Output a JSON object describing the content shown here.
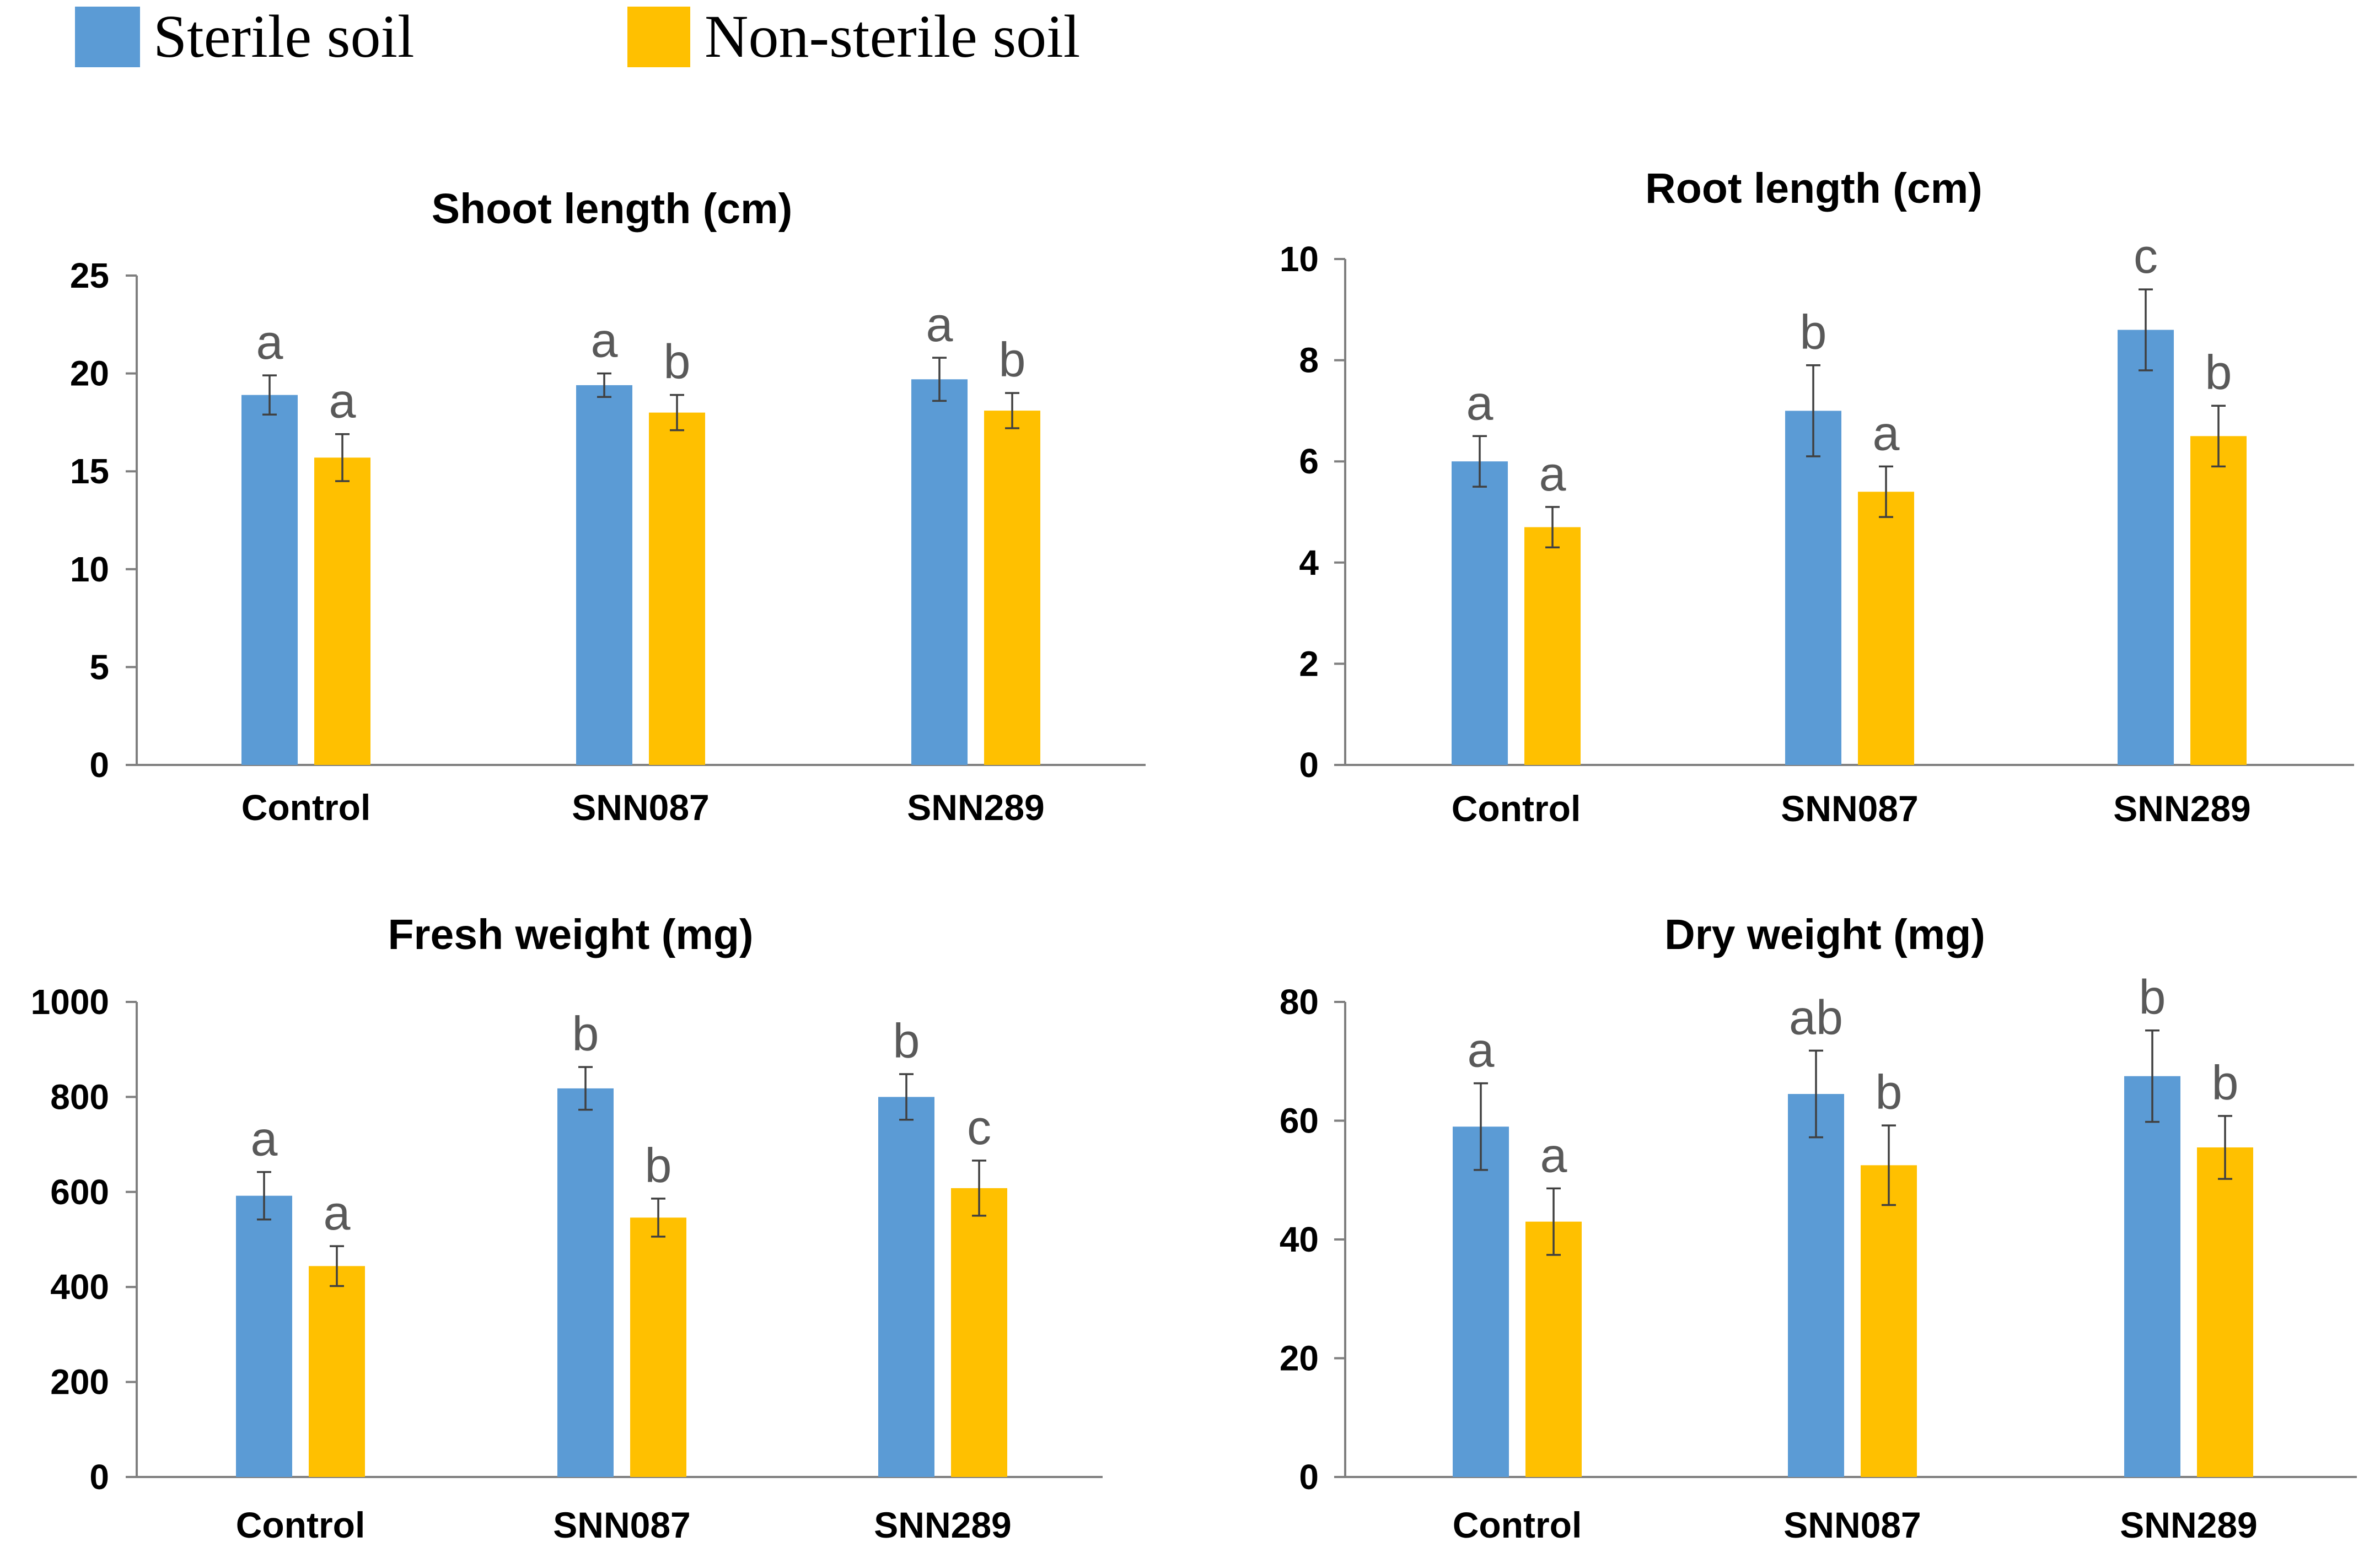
{
  "legend": {
    "series": [
      {
        "name": "Sterile soil",
        "color": "#5b9bd5"
      },
      {
        "name": "Non-sterile soil",
        "color": "#ffc000"
      }
    ]
  },
  "chart_data": [
    {
      "type": "bar",
      "title": "Shoot length (cm)",
      "categories": [
        "Control",
        "SNN087",
        "SNN289"
      ],
      "ylim": [
        0,
        25
      ],
      "yticks": [
        0,
        5,
        10,
        15,
        20,
        25
      ],
      "series": [
        {
          "name": "Sterile soil",
          "values": [
            18.9,
            19.4,
            19.7
          ],
          "errors": [
            1.0,
            0.6,
            1.1
          ],
          "letters": [
            "a",
            "a",
            "a"
          ]
        },
        {
          "name": "Non-sterile soil",
          "values": [
            15.7,
            18.0,
            18.1
          ],
          "errors": [
            1.2,
            0.9,
            0.9
          ],
          "letters": [
            "a",
            "b",
            "b"
          ]
        }
      ]
    },
    {
      "type": "bar",
      "title": "Root length (cm)",
      "categories": [
        "Control",
        "SNN087",
        "SNN289"
      ],
      "ylim": [
        0,
        10
      ],
      "yticks": [
        0,
        2,
        4,
        6,
        8,
        10
      ],
      "series": [
        {
          "name": "Sterile soil",
          "values": [
            6.0,
            7.0,
            8.6
          ],
          "errors": [
            0.5,
            0.9,
            0.8
          ],
          "letters": [
            "a",
            "b",
            "c"
          ]
        },
        {
          "name": "Non-sterile soil",
          "values": [
            4.7,
            5.4,
            6.5
          ],
          "errors": [
            0.4,
            0.5,
            0.6
          ],
          "letters": [
            "a",
            "a",
            "b"
          ]
        }
      ]
    },
    {
      "type": "bar",
      "title": "Fresh weight (mg)",
      "categories": [
        "Control",
        "SNN087",
        "SNN289"
      ],
      "ylim": [
        0,
        1000
      ],
      "yticks": [
        0,
        200,
        400,
        600,
        800,
        1000
      ],
      "series": [
        {
          "name": "Sterile soil",
          "values": [
            592,
            818,
            800
          ],
          "errors": [
            50,
            45,
            48
          ],
          "letters": [
            "a",
            "b",
            "b"
          ]
        },
        {
          "name": "Non-sterile soil",
          "values": [
            444,
            546,
            608
          ],
          "errors": [
            42,
            40,
            58
          ],
          "letters": [
            "a",
            "b",
            "c"
          ]
        }
      ]
    },
    {
      "type": "bar",
      "title": "Dry weight (mg)",
      "categories": [
        "Control",
        "SNN087",
        "SNN289"
      ],
      "ylim": [
        0,
        80
      ],
      "yticks": [
        0,
        20,
        40,
        60,
        80
      ],
      "series": [
        {
          "name": "Sterile soil",
          "values": [
            59,
            64.5,
            67.5
          ],
          "errors": [
            7.3,
            7.3,
            7.7
          ],
          "letters": [
            "a",
            "ab",
            "b"
          ]
        },
        {
          "name": "Non-sterile soil",
          "values": [
            43,
            52.5,
            55.5
          ],
          "errors": [
            5.6,
            6.7,
            5.3
          ],
          "letters": [
            "a",
            "b",
            "b"
          ]
        }
      ]
    }
  ]
}
